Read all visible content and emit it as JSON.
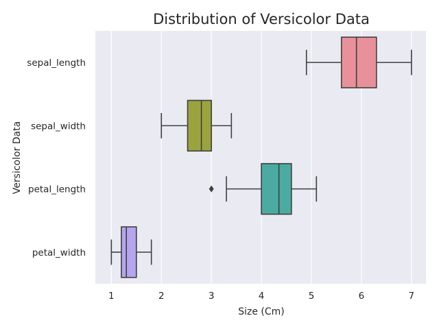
{
  "chart_data": {
    "type": "boxplot",
    "orientation": "horizontal",
    "title": "Distribution of Versicolor Data",
    "xlabel": "Size (Cm)",
    "ylabel": "Versicolor Data",
    "xlim": [
      0.68,
      7.29
    ],
    "xticks": [
      1,
      2,
      3,
      4,
      5,
      6,
      7
    ],
    "grid": true,
    "background": "#EAEAF2",
    "categories": [
      "sepal_length",
      "sepal_width",
      "petal_length",
      "petal_width"
    ],
    "boxes": [
      {
        "category": "sepal_length",
        "whisker_low": 4.9,
        "q1": 5.6,
        "median": 5.9,
        "q3": 6.3,
        "whisker_high": 7.0,
        "outliers": [],
        "color": "#E8919B"
      },
      {
        "category": "sepal_width",
        "whisker_low": 2.0,
        "q1": 2.525,
        "median": 2.8,
        "q3": 3.0,
        "whisker_high": 3.4,
        "outliers": [],
        "color": "#9BA33E"
      },
      {
        "category": "petal_length",
        "whisker_low": 3.3,
        "q1": 4.0,
        "median": 4.35,
        "q3": 4.6,
        "whisker_high": 5.1,
        "outliers": [
          3.0
        ],
        "color": "#4BABA2"
      },
      {
        "category": "petal_width",
        "whisker_low": 1.0,
        "q1": 1.2,
        "median": 1.3,
        "q3": 1.5,
        "whisker_high": 1.8,
        "outliers": [],
        "color": "#B6A5EE"
      }
    ]
  }
}
